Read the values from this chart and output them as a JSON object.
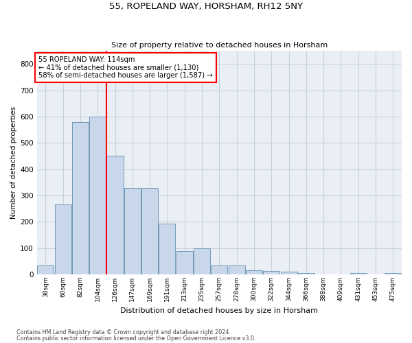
{
  "title1": "55, ROPELAND WAY, HORSHAM, RH12 5NY",
  "title2": "Size of property relative to detached houses in Horsham",
  "xlabel": "Distribution of detached houses by size in Horsham",
  "ylabel": "Number of detached properties",
  "footnote1": "Contains HM Land Registry data © Crown copyright and database right 2024.",
  "footnote2": "Contains public sector information licensed under the Open Government Licence v3.0.",
  "annotation_line1": "55 ROPELAND WAY: 114sqm",
  "annotation_line2": "← 41% of detached houses are smaller (1,130)",
  "annotation_line3": "58% of semi-detached houses are larger (1,587) →",
  "bar_color": "#c8d8ea",
  "bar_edge_color": "#7098b8",
  "vline_color": "red",
  "categories": [
    "38sqm",
    "60sqm",
    "82sqm",
    "104sqm",
    "126sqm",
    "147sqm",
    "169sqm",
    "191sqm",
    "213sqm",
    "235sqm",
    "257sqm",
    "278sqm",
    "300sqm",
    "322sqm",
    "344sqm",
    "366sqm",
    "388sqm",
    "409sqm",
    "431sqm",
    "453sqm",
    "475sqm"
  ],
  "values": [
    35,
    265,
    580,
    600,
    450,
    328,
    328,
    193,
    90,
    100,
    35,
    33,
    15,
    12,
    10,
    5,
    0,
    0,
    5,
    0,
    5
  ],
  "ylim": [
    0,
    850
  ],
  "yticks": [
    0,
    100,
    200,
    300,
    400,
    500,
    600,
    700,
    800
  ],
  "vline_x_index": 3.5,
  "grid_color": "#c8d0d8",
  "bg_color": "#eaeff5"
}
